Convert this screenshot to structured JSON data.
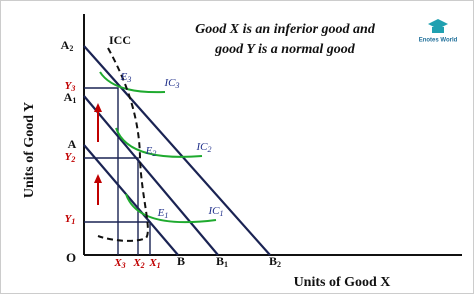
{
  "title": {
    "line1": "Good X is an inferior  good and",
    "line2": "good Y is a normal good"
  },
  "logo": "Enotes World",
  "axes": {
    "y_label": "Units of Good Y",
    "x_label": "Units of Good X",
    "origin": "O"
  },
  "labels": {
    "icc": "ICC",
    "a2": {
      "main": "A",
      "sub": "2"
    },
    "a1": {
      "main": "A",
      "sub": "1"
    },
    "a": "A",
    "b": "B",
    "b1": {
      "main": "B",
      "sub": "1"
    },
    "b2": {
      "main": "B",
      "sub": "2"
    },
    "y3": {
      "main": "Y",
      "sub": "3"
    },
    "y2": {
      "main": "Y",
      "sub": "2"
    },
    "y1": {
      "main": "Y",
      "sub": "1"
    },
    "x3": {
      "main": "X",
      "sub": "3"
    },
    "x2": {
      "main": "X",
      "sub": "2"
    },
    "x1": {
      "main": "X",
      "sub": "1"
    },
    "e3": {
      "main": "E",
      "sub": "3"
    },
    "e2": {
      "main": "E",
      "sub": "2"
    },
    "e1": {
      "main": "E",
      "sub": "1"
    },
    "ic3": {
      "main": "IC",
      "sub": "3"
    },
    "ic2": {
      "main": "IC",
      "sub": "2"
    },
    "ic1": {
      "main": "IC",
      "sub": "1"
    }
  }
}
